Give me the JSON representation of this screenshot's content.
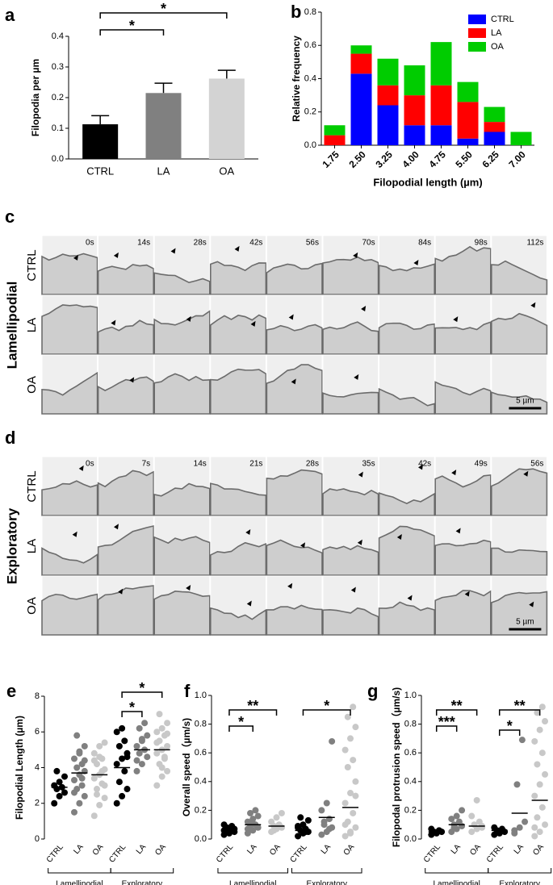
{
  "chart_data": [
    {
      "type": "bar",
      "letter": "a",
      "ylabel": "Filopodia per µm",
      "categories": [
        "CTRL",
        "LA",
        "OA"
      ],
      "values": [
        0.113,
        0.215,
        0.262
      ],
      "errors": [
        0.028,
        0.032,
        0.027
      ],
      "colors": [
        "#000000",
        "#808080",
        "#d3d3d3"
      ],
      "ylim": [
        0,
        0.4
      ],
      "yticks": [
        {
          "value": 0,
          "label": "0.0"
        },
        0.1,
        0.2,
        0.3,
        0.4
      ],
      "annotations": [
        "*",
        "*"
      ]
    },
    {
      "type": "stacked_bar",
      "letter": "b",
      "ylabel": "Relative frequency",
      "xlabel": "Filopodial length (µm)",
      "categories": [
        "1.75",
        "2.50",
        "3.25",
        "4.00",
        "4.75",
        "5.50",
        "6.25",
        "7.00"
      ],
      "series": [
        {
          "name": "CTRL",
          "color": "#0000ff",
          "values": [
            0,
            0.43,
            0.24,
            0.12,
            0.12,
            0.04,
            0.08,
            0
          ]
        },
        {
          "name": "LA",
          "color": "#ff0000",
          "values": [
            0.06,
            0.12,
            0.12,
            0.18,
            0.24,
            0.22,
            0.06,
            0
          ]
        },
        {
          "name": "OA",
          "color": "#00cc00",
          "values": [
            0.06,
            0.05,
            0.16,
            0.18,
            0.26,
            0.12,
            0.09,
            0.08
          ]
        }
      ],
      "ylim": [
        0,
        0.8
      ],
      "yticks": [
        {
          "value": 0,
          "label": "0.0"
        },
        0.2,
        0.4,
        0.6,
        0.8
      ],
      "legend": "top-right"
    },
    {
      "type": "dot",
      "letter": "e",
      "ylabel": "Filopodial Length (µm)",
      "sections": [
        "Lamellipodial",
        "Exploratory"
      ],
      "ylim": [
        0,
        8
      ],
      "yticks": [
        0,
        2,
        4,
        6,
        8
      ],
      "groups": [
        {
          "name": "CTRL",
          "color": "#000000",
          "mean": 2.9,
          "values": [
            2.0,
            2.4,
            2.6,
            2.8,
            2.9,
            3.0,
            3.2,
            3.5,
            3.8
          ]
        },
        {
          "name": "LA",
          "color": "#808080",
          "mean": 3.7,
          "values": [
            1.5,
            2.0,
            2.4,
            2.8,
            3.0,
            3.3,
            3.6,
            3.8,
            4.0,
            4.2,
            4.5,
            4.8,
            5.2,
            5.8,
            3.4,
            2.6,
            4.9,
            4.4
          ]
        },
        {
          "name": "OA",
          "color": "#c8c8c8",
          "mean": 3.6,
          "values": [
            1.3,
            1.9,
            2.3,
            2.8,
            3.1,
            3.4,
            3.6,
            3.9,
            4.2,
            4.5,
            4.8,
            5.2,
            5.4,
            2.5,
            3.8,
            4.4,
            4.6,
            3.0
          ]
        },
        {
          "name": "CTRL",
          "color": "#000000",
          "mean": 4.0,
          "values": [
            2.0,
            2.4,
            2.8,
            3.2,
            3.8,
            4.2,
            4.5,
            4.8,
            5.2,
            5.5,
            6.0,
            6.2,
            4.6
          ]
        },
        {
          "name": "LA",
          "color": "#808080",
          "mean": 5.0,
          "values": [
            3.8,
            4.2,
            4.6,
            4.8,
            5.0,
            5.2,
            5.5,
            5.8,
            6.2,
            6.5,
            4.4,
            5.6
          ]
        },
        {
          "name": "OA",
          "color": "#c8c8c8",
          "mean": 5.0,
          "values": [
            3.0,
            3.5,
            3.8,
            4.2,
            4.5,
            4.8,
            5.0,
            5.2,
            5.5,
            5.8,
            6.0,
            6.2,
            6.5,
            7.0,
            4.6,
            5.4,
            4.0,
            5.9
          ]
        }
      ],
      "annotations": [
        "*",
        "*"
      ]
    },
    {
      "type": "dot",
      "letter": "f",
      "ylabel": "Overall speed（µm/s)",
      "sections": [
        "Lamellipodial",
        "Exploratory"
      ],
      "ylim": [
        0,
        1
      ],
      "yticks": [
        {
          "value": 0,
          "label": "0.0"
        },
        0.2,
        0.4,
        0.6,
        0.8,
        {
          "value": 1,
          "label": "1.0"
        }
      ],
      "groups": [
        {
          "name": "CTRL",
          "color": "#000000",
          "mean": 0.06,
          "values": [
            0.03,
            0.04,
            0.05,
            0.05,
            0.06,
            0.06,
            0.07,
            0.07,
            0.08,
            0.09,
            0.1
          ]
        },
        {
          "name": "LA",
          "color": "#808080",
          "mean": 0.1,
          "values": [
            0.04,
            0.06,
            0.08,
            0.09,
            0.1,
            0.12,
            0.14,
            0.16,
            0.18,
            0.2,
            0.07,
            0.11
          ]
        },
        {
          "name": "OA",
          "color": "#c8c8c8",
          "mean": 0.09,
          "values": [
            0.05,
            0.07,
            0.08,
            0.09,
            0.1,
            0.12,
            0.15,
            0.18,
            0.06
          ]
        },
        {
          "name": "CTRL",
          "color": "#000000",
          "mean": 0.06,
          "values": [
            0.02,
            0.04,
            0.05,
            0.06,
            0.07,
            0.08,
            0.1,
            0.13,
            0.15,
            0.05,
            0.09
          ]
        },
        {
          "name": "LA",
          "color": "#808080",
          "mean": 0.15,
          "values": [
            0.03,
            0.05,
            0.08,
            0.1,
            0.14,
            0.2,
            0.25,
            0.68,
            0.12,
            0.07
          ]
        },
        {
          "name": "OA",
          "color": "#c8c8c8",
          "mean": 0.22,
          "values": [
            0.02,
            0.05,
            0.08,
            0.12,
            0.18,
            0.25,
            0.32,
            0.4,
            0.5,
            0.55,
            0.62,
            0.7,
            0.78,
            0.85,
            0.92,
            0.1,
            0.04,
            0.3
          ]
        }
      ],
      "annotations": [
        "*",
        "**",
        "*"
      ]
    },
    {
      "type": "dot",
      "letter": "g",
      "ylabel": "Filopodal protrusion speed（µm/s)",
      "sections": [
        "Lamellipodial",
        "Exploratory"
      ],
      "ylim": [
        0,
        1
      ],
      "yticks": [
        {
          "value": 0,
          "label": "0.0"
        },
        0.2,
        0.4,
        0.6,
        0.8,
        {
          "value": 1,
          "label": "1.0"
        }
      ],
      "groups": [
        {
          "name": "CTRL",
          "color": "#000000",
          "mean": 0.05,
          "values": [
            0.03,
            0.04,
            0.05,
            0.05,
            0.06,
            0.07
          ]
        },
        {
          "name": "LA",
          "color": "#808080",
          "mean": 0.1,
          "values": [
            0.05,
            0.07,
            0.09,
            0.1,
            0.12,
            0.14,
            0.16,
            0.2,
            0.08
          ]
        },
        {
          "name": "OA",
          "color": "#c8c8c8",
          "mean": 0.09,
          "values": [
            0.05,
            0.07,
            0.08,
            0.1,
            0.12,
            0.16,
            0.27,
            0.09
          ]
        },
        {
          "name": "CTRL",
          "color": "#000000",
          "mean": 0.06,
          "values": [
            0.03,
            0.04,
            0.05,
            0.06,
            0.07,
            0.08
          ]
        },
        {
          "name": "LA",
          "color": "#808080",
          "mean": 0.18,
          "values": [
            0.04,
            0.08,
            0.12,
            0.38,
            0.69,
            0.06
          ]
        },
        {
          "name": "OA",
          "color": "#c8c8c8",
          "mean": 0.27,
          "values": [
            0.02,
            0.05,
            0.1,
            0.15,
            0.22,
            0.3,
            0.38,
            0.45,
            0.52,
            0.6,
            0.68,
            0.76,
            0.82,
            0.88,
            0.92,
            0.08
          ]
        }
      ],
      "annotations": [
        "***",
        "**",
        "*",
        "**"
      ]
    }
  ],
  "image_panels": [
    {
      "letter": "c",
      "group": "Lamellipodial",
      "rows": [
        "CTRL",
        "LA",
        "OA"
      ],
      "times": [
        "0s",
        "14s",
        "28s",
        "42s",
        "56s",
        "70s",
        "84s",
        "98s",
        "112s"
      ],
      "scale": "5 µm"
    },
    {
      "letter": "d",
      "group": "Exploratory",
      "rows": [
        "CTRL",
        "LA",
        "OA"
      ],
      "times": [
        "0s",
        "7s",
        "14s",
        "21s",
        "28s",
        "35s",
        "42s",
        "49s",
        "56s"
      ],
      "scale": "5 µm"
    }
  ]
}
